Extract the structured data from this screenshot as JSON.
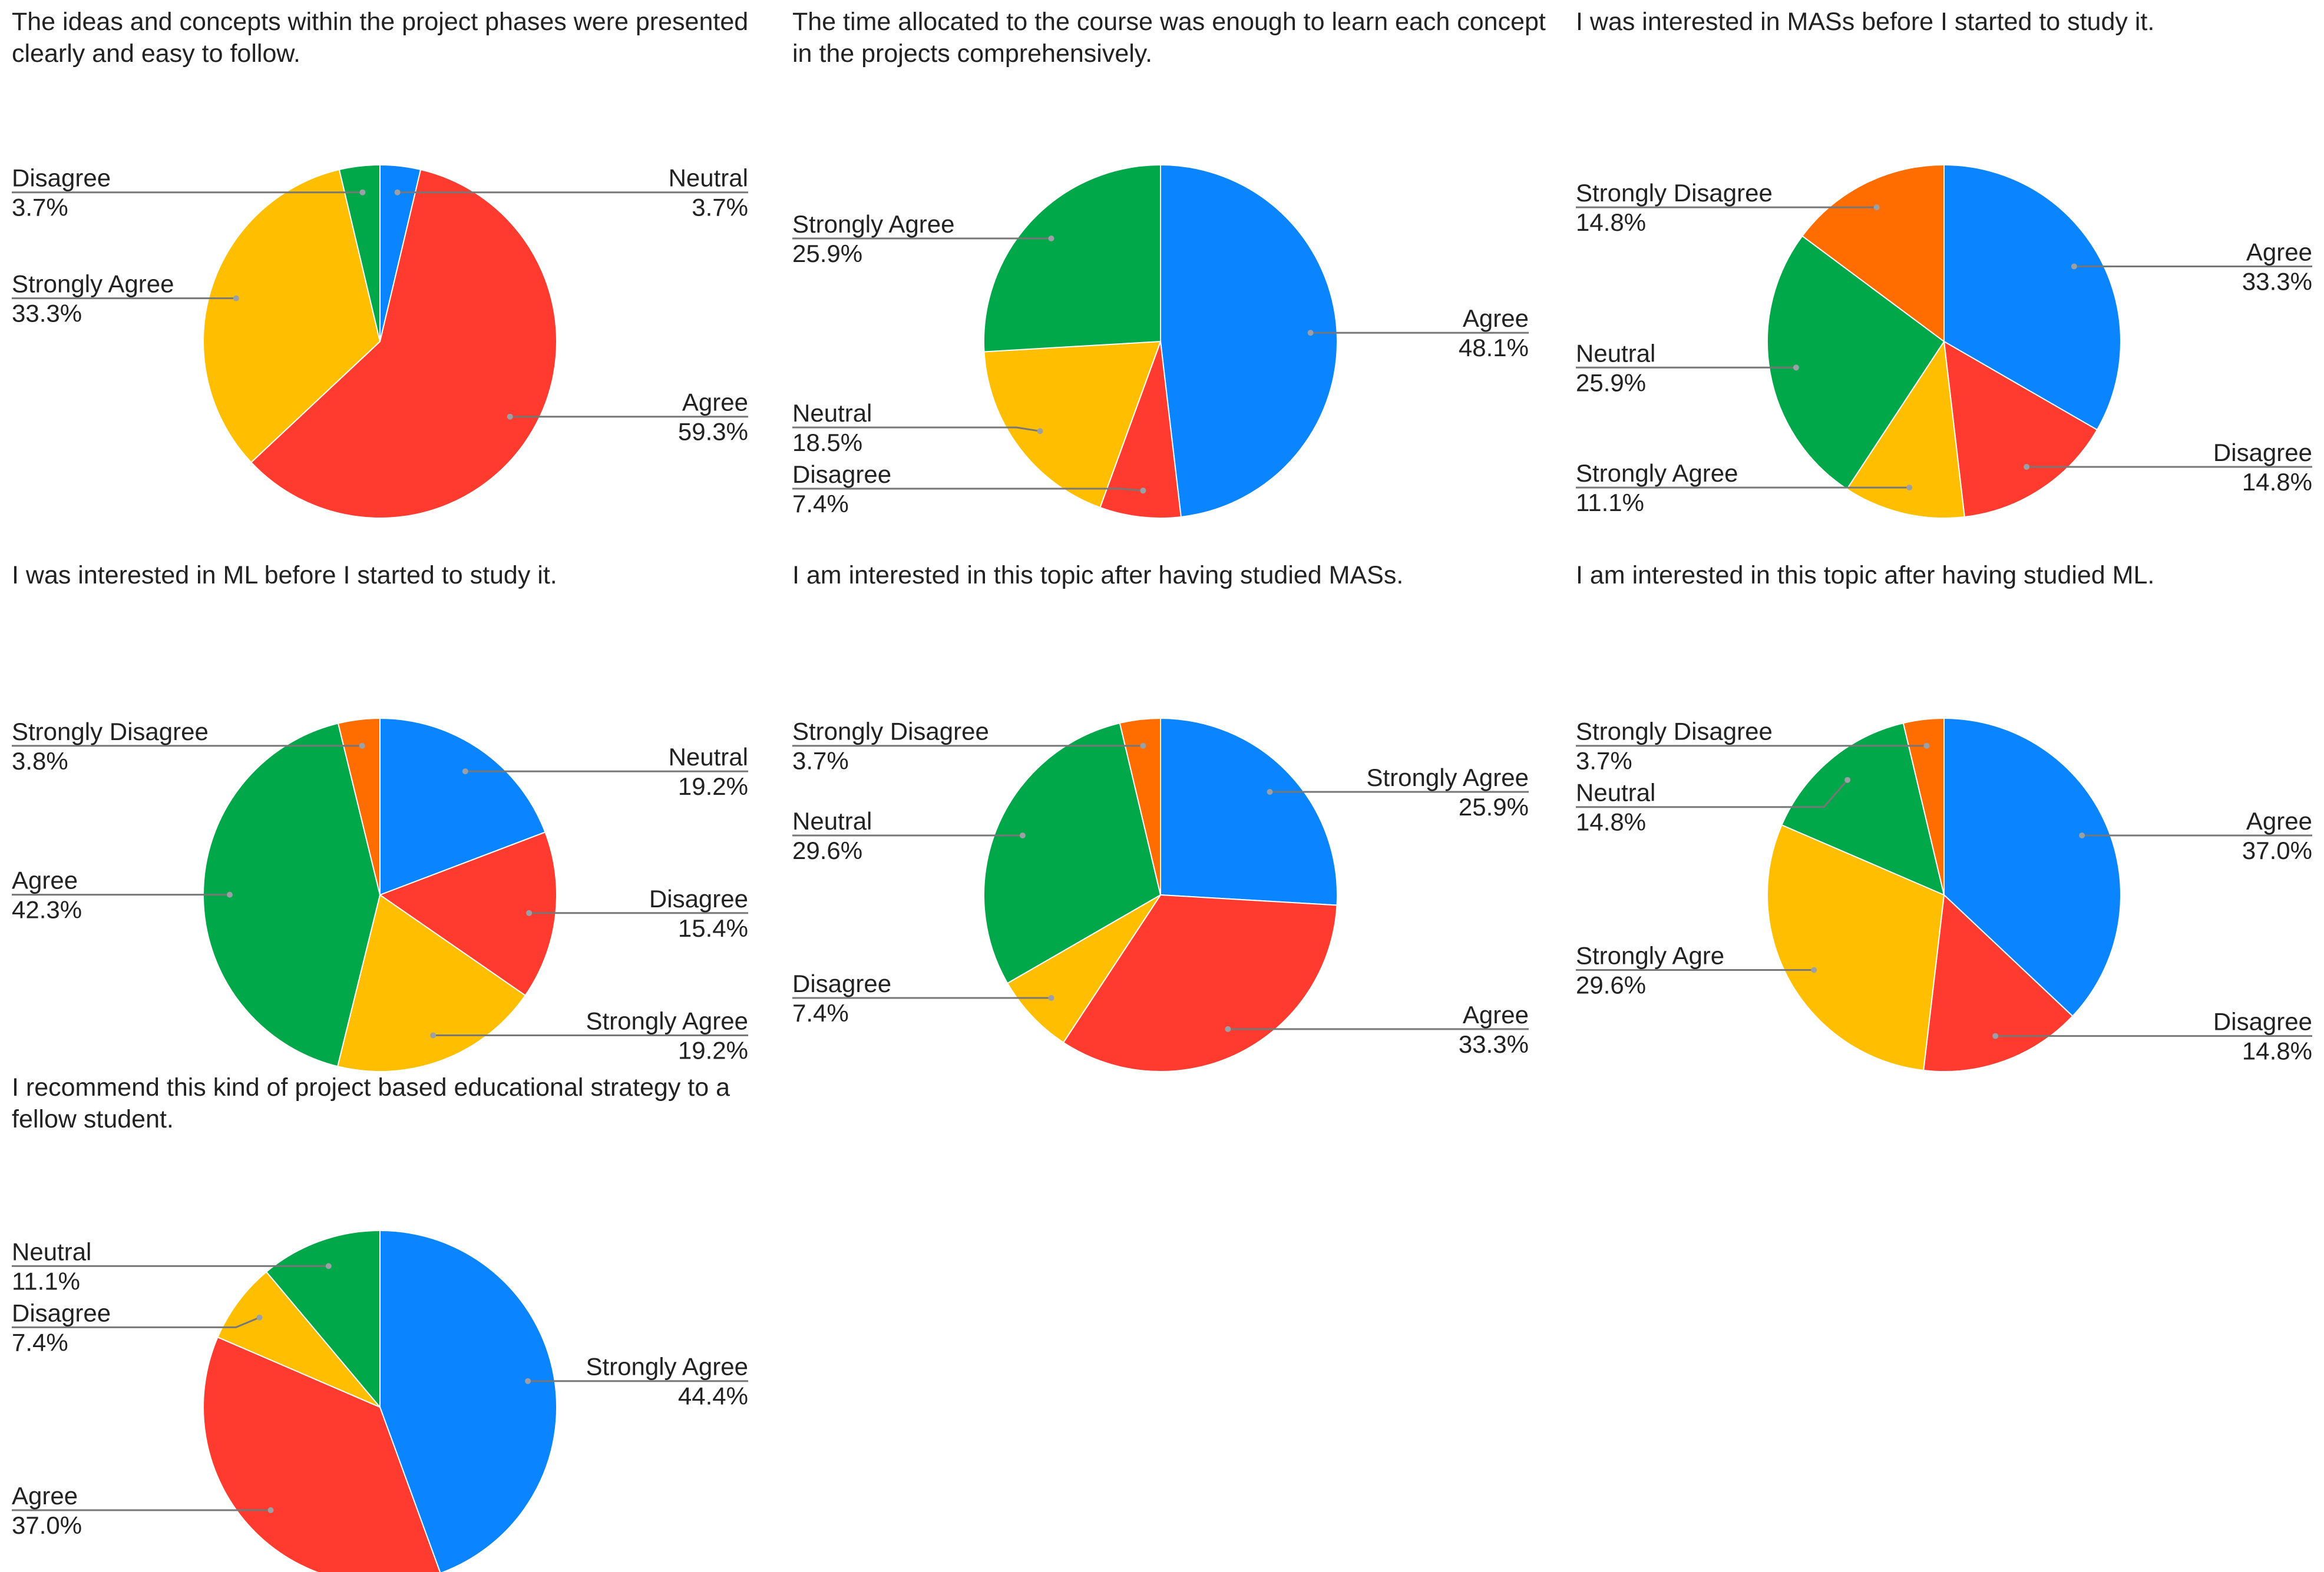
{
  "colors": {
    "blue": "#0a84ff",
    "red": "#ff3b30",
    "yellow": "#ffbf00",
    "green": "#00a84a",
    "orange": "#ff6d00"
  },
  "chart_data": [
    {
      "type": "pie",
      "title": "The ideas and concepts within the project phases were presented clearly and easy to follow.",
      "slices": [
        {
          "label": "Neutral",
          "value": 3.7,
          "display": "3.7%",
          "color": "#0a84ff",
          "label_side": "right"
        },
        {
          "label": "Agree",
          "value": 59.3,
          "display": "59.3%",
          "color": "#ff3b30",
          "label_side": "right"
        },
        {
          "label": "Strongly Agree",
          "value": 33.3,
          "display": "33.3%",
          "color": "#ffbf00",
          "label_side": "left"
        },
        {
          "label": "Disagree",
          "value": 3.7,
          "display": "3.7%",
          "color": "#00a84a",
          "label_side": "left"
        }
      ]
    },
    {
      "type": "pie",
      "title": "The time allocated to the course was enough to learn each concept in the projects comprehensively.",
      "slices": [
        {
          "label": "Agree",
          "value": 48.1,
          "display": "48.1%",
          "color": "#0a84ff",
          "label_side": "right"
        },
        {
          "label": "Disagree",
          "value": 7.4,
          "display": "7.4%",
          "color": "#ff3b30",
          "label_side": "left"
        },
        {
          "label": "Neutral",
          "value": 18.5,
          "display": "18.5%",
          "color": "#ffbf00",
          "label_side": "left"
        },
        {
          "label": "Strongly Agree",
          "value": 25.9,
          "display": "25.9%",
          "color": "#00a84a",
          "label_side": "left"
        }
      ]
    },
    {
      "type": "pie",
      "title": "I was interested in MASs before I started to study it.",
      "slices": [
        {
          "label": "Agree",
          "value": 33.3,
          "display": "33.3%",
          "color": "#0a84ff",
          "label_side": "right"
        },
        {
          "label": "Disagree",
          "value": 14.8,
          "display": "14.8%",
          "color": "#ff3b30",
          "label_side": "right"
        },
        {
          "label": "Strongly Agree",
          "value": 11.1,
          "display": "11.1%",
          "color": "#ffbf00",
          "label_side": "left"
        },
        {
          "label": "Neutral",
          "value": 25.9,
          "display": "25.9%",
          "color": "#00a84a",
          "label_side": "left"
        },
        {
          "label": "Strongly Disagree",
          "value": 14.8,
          "display": "14.8%",
          "color": "#ff6d00",
          "label_side": "left"
        }
      ]
    },
    {
      "type": "pie",
      "title": "I was interested in ML before I started to study it.",
      "slices": [
        {
          "label": "Neutral",
          "value": 19.2,
          "display": "19.2%",
          "color": "#0a84ff",
          "label_side": "right"
        },
        {
          "label": "Disagree",
          "value": 15.4,
          "display": "15.4%",
          "color": "#ff3b30",
          "label_side": "right"
        },
        {
          "label": "Strongly Agree",
          "value": 19.2,
          "display": "19.2%",
          "color": "#ffbf00",
          "label_side": "right"
        },
        {
          "label": "Agree",
          "value": 42.3,
          "display": "42.3%",
          "color": "#00a84a",
          "label_side": "left"
        },
        {
          "label": "Strongly Disagree",
          "value": 3.8,
          "display": "3.8%",
          "color": "#ff6d00",
          "label_side": "left"
        }
      ]
    },
    {
      "type": "pie",
      "title": "I am interested in this topic after having studied MASs.",
      "slices": [
        {
          "label": "Strongly Agree",
          "value": 25.9,
          "display": "25.9%",
          "color": "#0a84ff",
          "label_side": "right"
        },
        {
          "label": "Agree",
          "value": 33.3,
          "display": "33.3%",
          "color": "#ff3b30",
          "label_side": "right"
        },
        {
          "label": "Disagree",
          "value": 7.4,
          "display": "7.4%",
          "color": "#ffbf00",
          "label_side": "left"
        },
        {
          "label": "Neutral",
          "value": 29.6,
          "display": "29.6%",
          "color": "#00a84a",
          "label_side": "left"
        },
        {
          "label": "Strongly Disagree",
          "value": 3.7,
          "display": "3.7%",
          "color": "#ff6d00",
          "label_side": "left"
        }
      ]
    },
    {
      "type": "pie",
      "title": "I am interested in this topic after having studied ML.",
      "slices": [
        {
          "label": "Agree",
          "value": 37.0,
          "display": "37.0%",
          "color": "#0a84ff",
          "label_side": "right"
        },
        {
          "label": "Disagree",
          "value": 14.8,
          "display": "14.8%",
          "color": "#ff3b30",
          "label_side": "right"
        },
        {
          "label": "Strongly Agre",
          "value": 29.6,
          "display": "29.6%",
          "color": "#ffbf00",
          "label_side": "left"
        },
        {
          "label": "Neutral",
          "value": 14.8,
          "display": "14.8%",
          "color": "#00a84a",
          "label_side": "left"
        },
        {
          "label": "Strongly Disagree",
          "value": 3.7,
          "display": "3.7%",
          "color": "#ff6d00",
          "label_side": "left"
        }
      ]
    },
    {
      "type": "pie",
      "title": "I recommend this kind of project based educational strategy to a fellow student.",
      "slices": [
        {
          "label": "Strongly Agree",
          "value": 44.4,
          "display": "44.4%",
          "color": "#0a84ff",
          "label_side": "right"
        },
        {
          "label": "Agree",
          "value": 37.0,
          "display": "37.0%",
          "color": "#ff3b30",
          "label_side": "left"
        },
        {
          "label": "Disagree",
          "value": 7.4,
          "display": "7.4%",
          "color": "#ffbf00",
          "label_side": "left"
        },
        {
          "label": "Neutral",
          "value": 11.1,
          "display": "11.1%",
          "color": "#00a84a",
          "label_side": "left"
        }
      ]
    }
  ]
}
